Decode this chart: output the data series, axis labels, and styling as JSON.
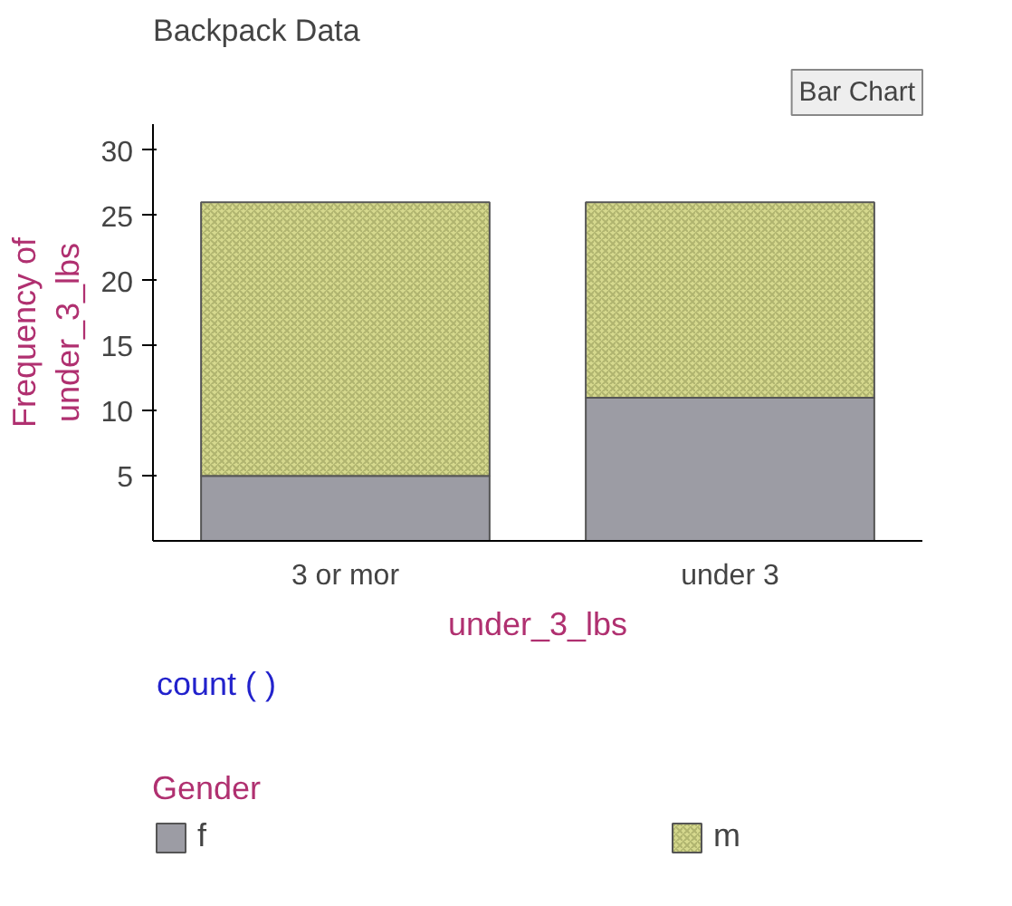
{
  "chart_data": {
    "type": "bar",
    "title": "Backpack Data",
    "xlabel": "under_3_lbs",
    "ylabel": "Frequency of\nunder_3_lbs",
    "legend_title": "Gender",
    "categories": [
      "3 or mor",
      "under 3"
    ],
    "series": [
      {
        "name": "f",
        "color": "#9c9ca4",
        "values": [
          5,
          11
        ]
      },
      {
        "name": "m",
        "color": "#d6d98e",
        "values": [
          21,
          15
        ]
      }
    ],
    "stacked": true,
    "ylim": [
      0,
      32
    ],
    "yticks": [
      5,
      10,
      15,
      20,
      25,
      30
    ],
    "grid": false,
    "legend": "bottom",
    "annotations": [
      "count ( )",
      "Bar Chart"
    ]
  }
}
